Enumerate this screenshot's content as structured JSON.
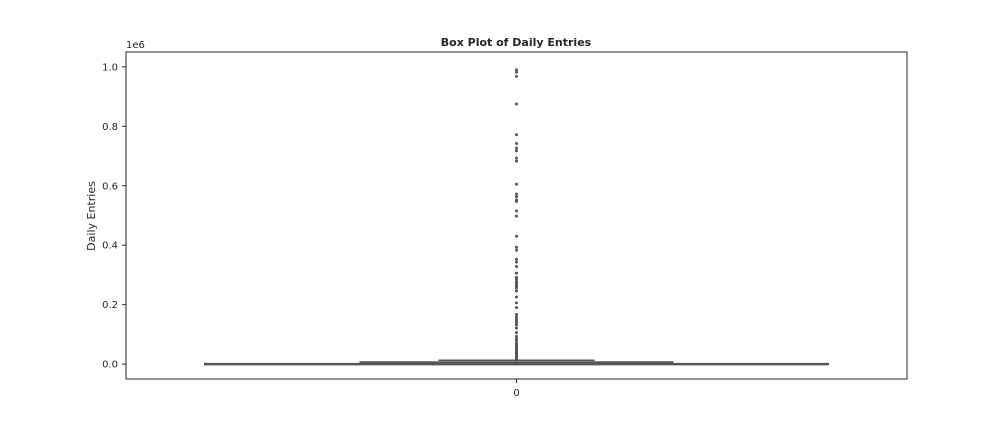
{
  "chart_data": {
    "type": "box",
    "title": "Box Plot of Daily Entries",
    "xlabel": "",
    "ylabel": "Daily Entries",
    "y_offset_text": "1e6",
    "y_scale_factor": 1000000,
    "ylim": [
      -50000,
      1050000
    ],
    "yticks": [
      0,
      200000,
      400000,
      600000,
      800000,
      1000000
    ],
    "ytick_labels": [
      "0.0",
      "0.2",
      "0.4",
      "0.6",
      "0.8",
      "1.0"
    ],
    "categories": [
      "0"
    ],
    "grid": false,
    "box": {
      "category": "0",
      "min": 0,
      "q1": 300,
      "median": 1500,
      "q3": 5500,
      "whisker_low": 0,
      "whisker_high": 13000
    },
    "outliers": [
      990000,
      982000,
      968000,
      875000,
      772000,
      742000,
      727000,
      718000,
      693000,
      683000,
      605000,
      572000,
      563000,
      552000,
      547000,
      515000,
      498000,
      430000,
      393000,
      383000,
      353000,
      343000,
      328000,
      306000,
      292000,
      286000,
      278000,
      272000,
      266000,
      261000,
      256000,
      246000,
      226000,
      206000,
      190000,
      167000,
      158000,
      150000,
      144000,
      137000,
      132000,
      121000,
      106000,
      94000,
      86000,
      79000,
      70000,
      65000,
      60000,
      55000,
      50000,
      46000,
      42000,
      38000,
      34000,
      30000,
      27000,
      24000,
      21000,
      18000,
      16000,
      14500
    ],
    "colors": {
      "box_fill": "#4c72b0",
      "line": "#555555",
      "axes": "#262626"
    }
  }
}
